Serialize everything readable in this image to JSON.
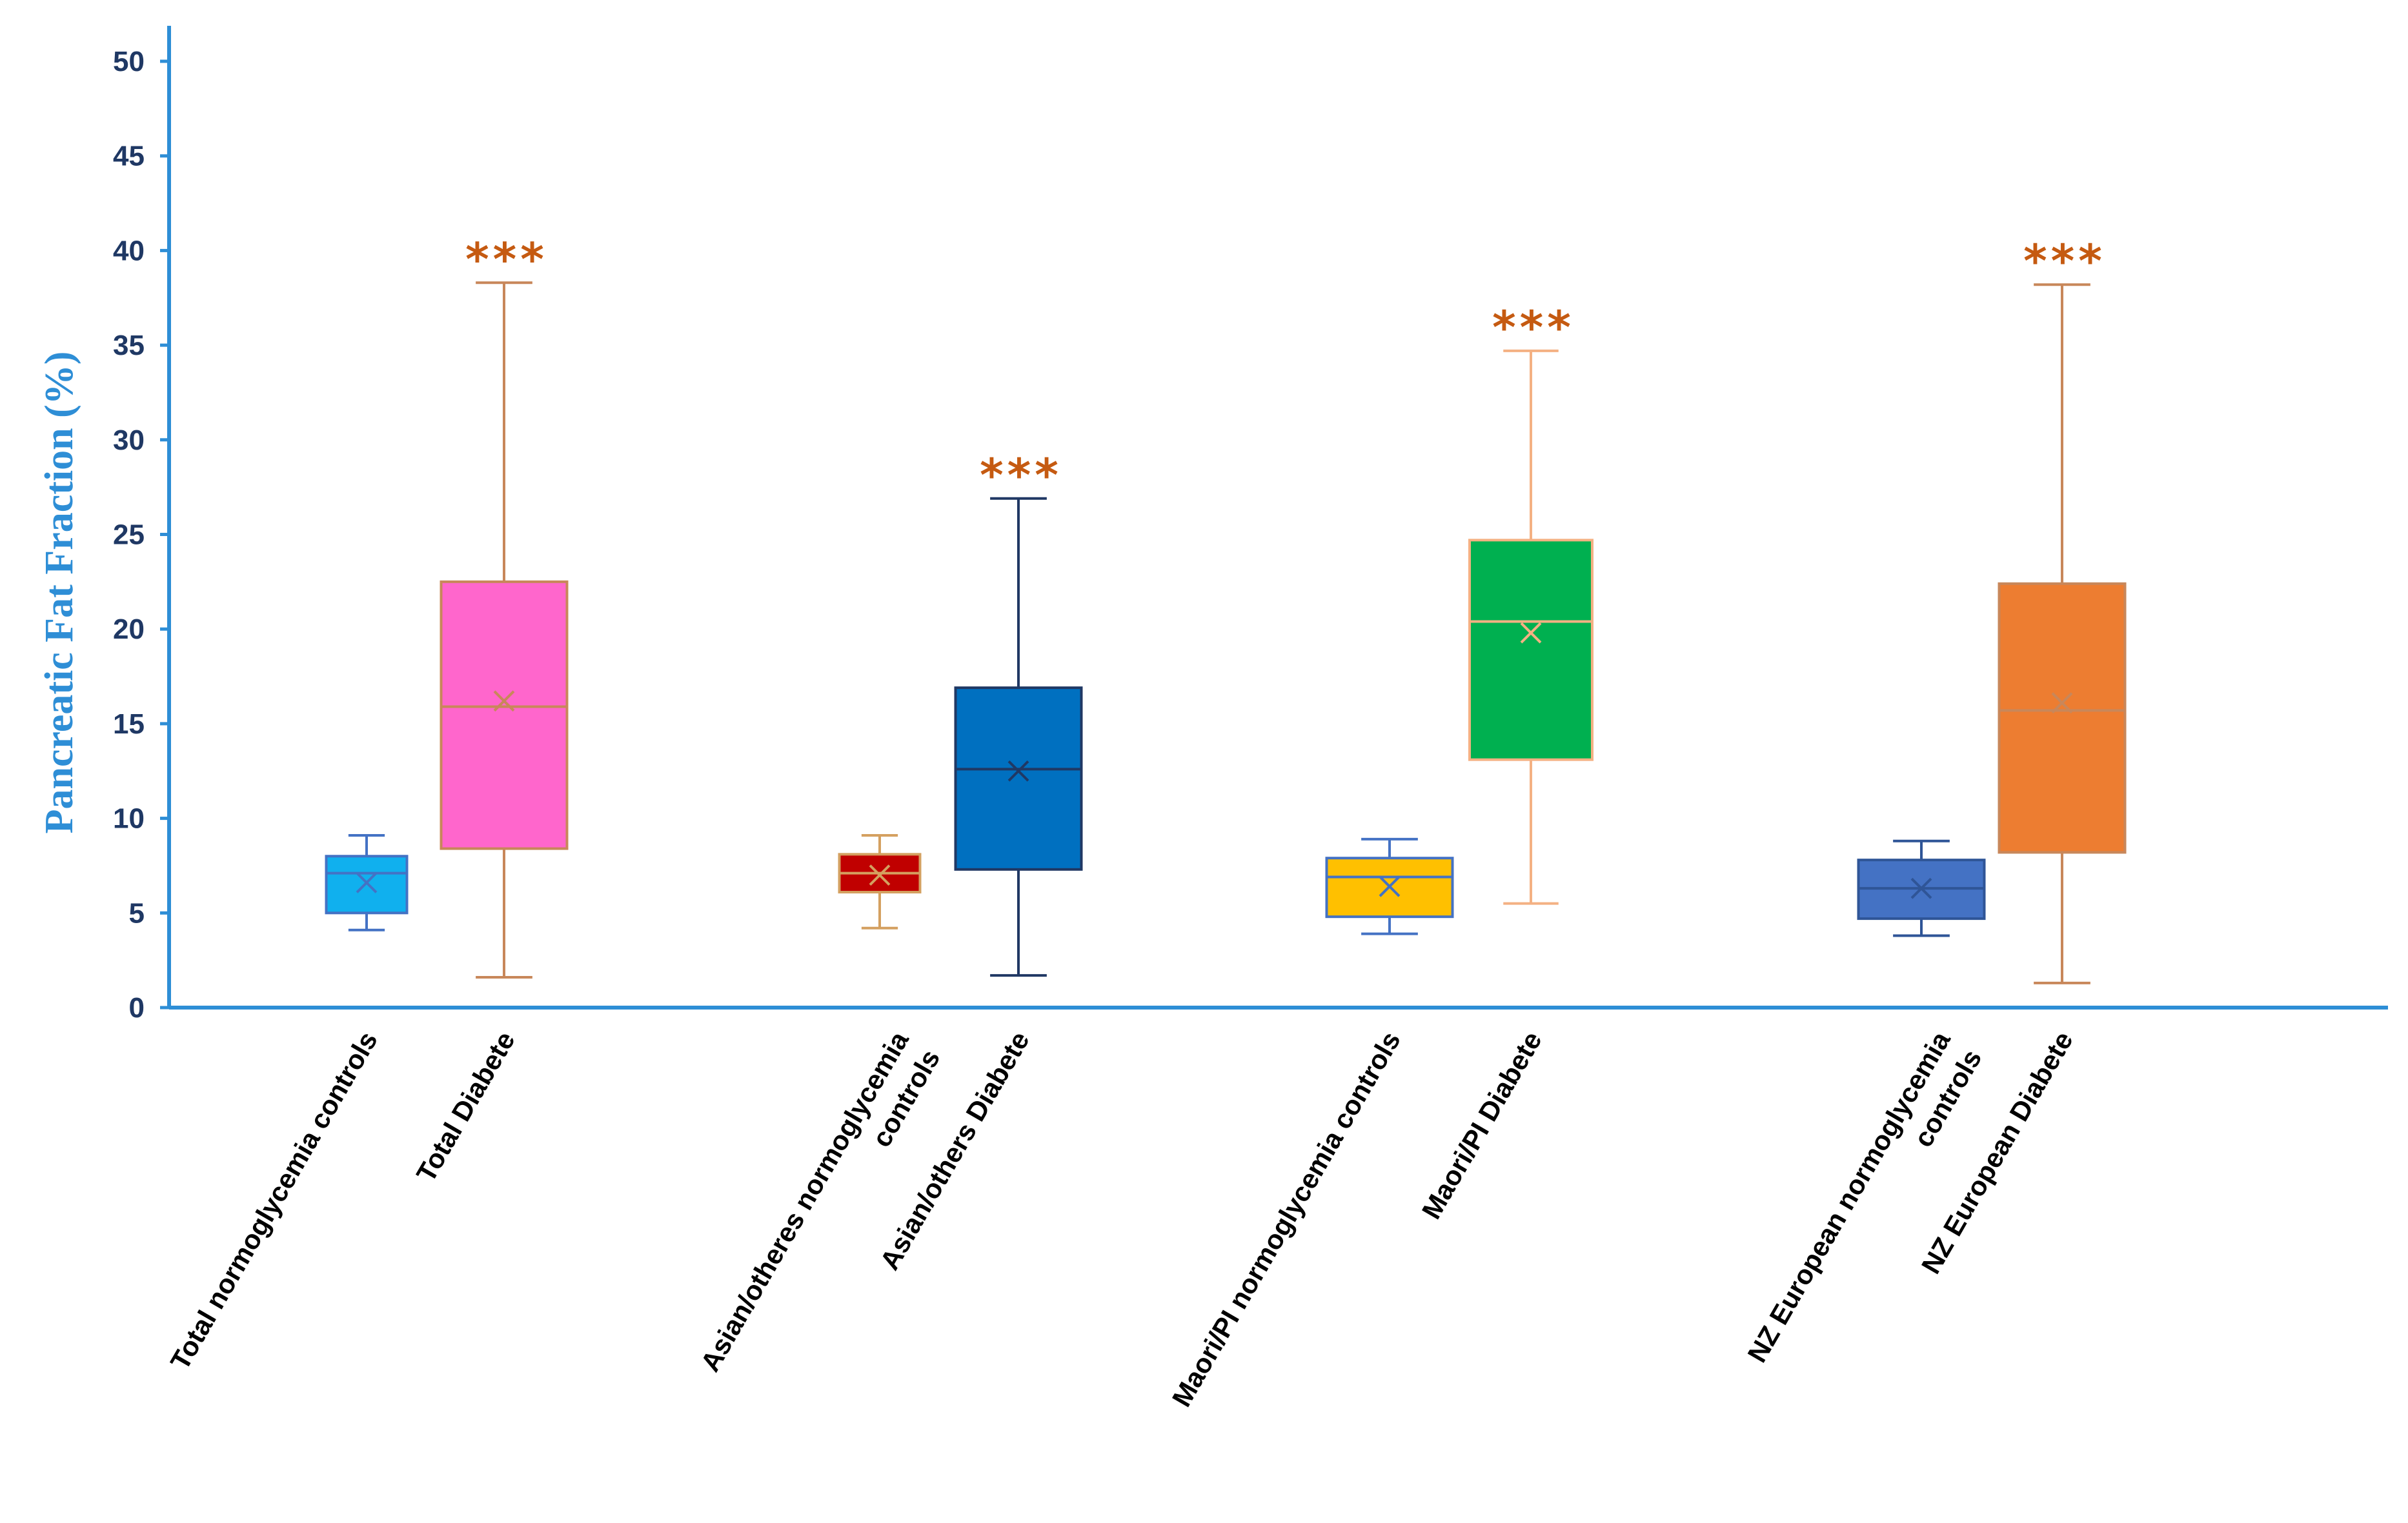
{
  "chart_data": {
    "type": "box",
    "title": "",
    "xlabel": "",
    "ylabel": "Pancreatic Fat Fraction (%)",
    "ylim": [
      0,
      50
    ],
    "yticks": [
      0,
      5,
      10,
      15,
      20,
      25,
      30,
      35,
      40,
      45,
      50
    ],
    "grid": false,
    "groups": [
      {
        "boxes": [
          {
            "label_lines": [
              "Total normoglycemia controls"
            ],
            "min": 4.1,
            "q1": 5.0,
            "median": 7.1,
            "q3": 8.0,
            "max": 9.1,
            "mean": 6.6,
            "fill": "#10B0EE",
            "stroke": "#4472C4",
            "sig": ""
          },
          {
            "label_lines": [
              "Total Diabete"
            ],
            "min": 1.6,
            "q1": 8.4,
            "median": 15.9,
            "q3": 22.5,
            "max": 38.3,
            "mean": 16.2,
            "fill": "#FF66CC",
            "stroke": "#C8875A",
            "sig": "***"
          }
        ]
      },
      {
        "boxes": [
          {
            "label_lines": [
              "Asian/otheres normoglycemia",
              "controls"
            ],
            "min": 4.2,
            "q1": 6.1,
            "median": 7.1,
            "q3": 8.1,
            "max": 9.1,
            "mean": 7.0,
            "fill": "#C00000",
            "stroke": "#D4A060",
            "sig": ""
          },
          {
            "label_lines": [
              "Asian/others Diabete"
            ],
            "min": 1.7,
            "q1": 7.3,
            "median": 12.6,
            "q3": 16.9,
            "max": 26.9,
            "mean": 12.5,
            "fill": "#0070C0",
            "stroke": "#203864",
            "sig": "***"
          }
        ]
      },
      {
        "boxes": [
          {
            "label_lines": [
              "Maori/PI normoglycemia controls"
            ],
            "min": 3.9,
            "q1": 4.8,
            "median": 6.9,
            "q3": 7.9,
            "max": 8.9,
            "mean": 6.4,
            "fill": "#FFC000",
            "stroke": "#4472C4",
            "sig": ""
          },
          {
            "label_lines": [
              "Maori/PI Diabete"
            ],
            "min": 5.5,
            "q1": 13.1,
            "median": 20.4,
            "q3": 24.7,
            "max": 34.7,
            "mean": 19.8,
            "fill": "#00B050",
            "stroke": "#F4B183",
            "sig": "***"
          }
        ]
      },
      {
        "boxes": [
          {
            "label_lines": [
              "NZ European normoglycemia",
              "controls"
            ],
            "min": 3.8,
            "q1": 4.7,
            "median": 6.3,
            "q3": 7.8,
            "max": 8.8,
            "mean": 6.3,
            "fill": "#4472C4",
            "stroke": "#2F5597",
            "sig": ""
          },
          {
            "label_lines": [
              "NZ European Diabete"
            ],
            "min": 1.3,
            "q1": 8.2,
            "median": 15.7,
            "q3": 22.4,
            "max": 38.2,
            "mean": 16.1,
            "fill": "#ED7D31",
            "stroke": "#C8875A",
            "sig": "***"
          }
        ]
      }
    ],
    "colors": {
      "axis": "#2E8ED6",
      "tick_label": "#1F3864",
      "ylabel": "#2E8ED6",
      "significance": "#C55A11",
      "category_label": "#000000"
    }
  }
}
